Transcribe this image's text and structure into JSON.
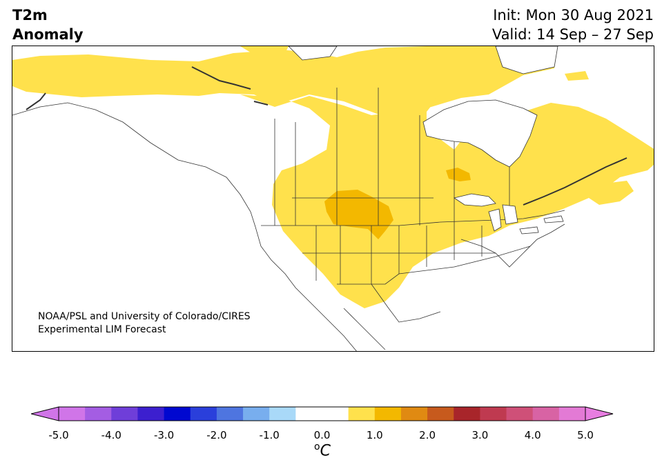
{
  "title": {
    "line1": "T2m",
    "line2": "Anomaly"
  },
  "dates": {
    "init": "Init: Mon 30 Aug 2021",
    "valid": "Valid: 14 Sep – 27 Sep"
  },
  "credit": {
    "line1": "NOAA/PSL and University of Colorado/CIRES",
    "line2": "Experimental LIM Forecast"
  },
  "colorbar": {
    "unit_base": "C",
    "unit_sup": "o",
    "ticks": [
      "-5.0",
      "-4.0",
      "-3.0",
      "-2.0",
      "-1.0",
      "0.0",
      "1.0",
      "2.0",
      "3.0",
      "4.0",
      "5.0"
    ],
    "colors": [
      "#d075e8",
      "#a45de3",
      "#6f3ed9",
      "#3c1fcf",
      "#0008d0",
      "#2a3fdb",
      "#4e75e0",
      "#78aeee",
      "#a9d9f8",
      "#ffffff",
      "#ffffff",
      "#ffe14c",
      "#f3b800",
      "#e08a12",
      "#c75a1d",
      "#a8252a",
      "#bf3a50",
      "#cf5078",
      "#d863a4",
      "#e37ad5"
    ],
    "under_color": "#d075e8",
    "over_color": "#e77de0"
  },
  "legend_colors": {
    "anomaly_05_10": "#ffe14c",
    "anomaly_10_15": "#f3b800"
  }
}
